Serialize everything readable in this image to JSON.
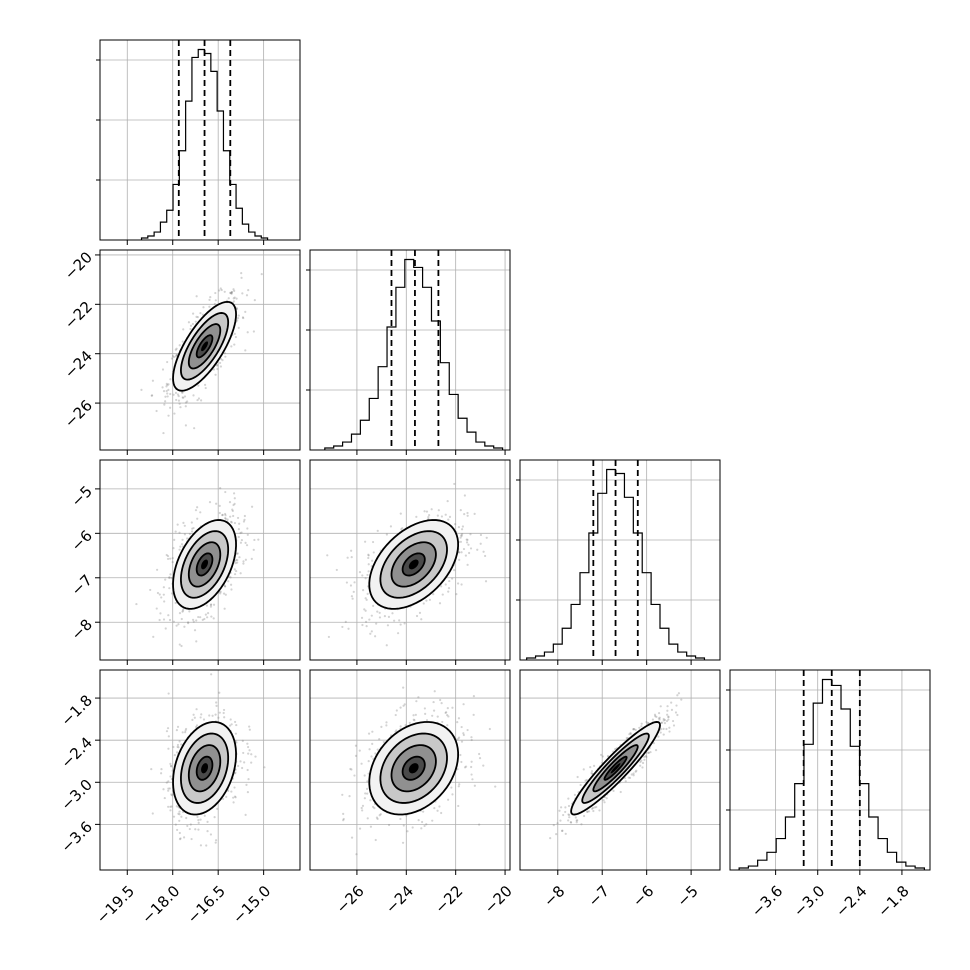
{
  "chart_data": {
    "type": "corner",
    "title": "",
    "grid": true,
    "parameters": [
      {
        "index": 0,
        "range": [
          -20.4,
          -13.8
        ],
        "mean": -16.95,
        "sd": 0.52,
        "ticks": [
          -19.5,
          -18.0,
          -16.5,
          -15.0
        ],
        "tick_labels": [
          "−19.5",
          "−18.0",
          "−16.5",
          "−15.0"
        ],
        "quantiles": [
          -17.8,
          -16.95,
          -16.1
        ]
      },
      {
        "index": 1,
        "range": [
          -27.9,
          -19.8
        ],
        "mean": -23.7,
        "sd": 0.9,
        "ticks": [
          -26,
          -24,
          -22,
          -20
        ],
        "tick_labels": [
          "−26",
          "−24",
          "−22",
          "−20"
        ],
        "quantiles": [
          -24.6,
          -23.65,
          -22.7
        ]
      },
      {
        "index": 2,
        "range": [
          -8.85,
          -4.35
        ],
        "mean": -6.7,
        "sd": 0.5,
        "ticks": [
          -8,
          -7,
          -6,
          -5
        ],
        "tick_labels": [
          "−8",
          "−7",
          "−6",
          "−5"
        ],
        "quantiles": [
          -7.2,
          -6.7,
          -6.2
        ]
      },
      {
        "index": 3,
        "range": [
          -4.25,
          -1.4
        ],
        "mean": -2.8,
        "sd": 0.33,
        "ticks": [
          -3.6,
          -3.0,
          -2.4,
          -1.8
        ],
        "tick_labels": [
          "−3.6",
          "−3.0",
          "−2.4",
          "−1.8"
        ],
        "quantiles": [
          -3.2,
          -2.8,
          -2.4
        ]
      }
    ],
    "correlations": {
      "1-0": 0.72,
      "2-0": 0.45,
      "2-1": 0.45,
      "3-0": 0.3,
      "3-1": 0.3,
      "3-2": 0.93
    },
    "histograms": [
      {
        "index": 0,
        "bins": 20,
        "counts": [
          1,
          2,
          4,
          9,
          15,
          28,
          45,
          70,
          92,
          96,
          94,
          85,
          65,
          45,
          28,
          16,
          8,
          4,
          2,
          1
        ]
      },
      {
        "index": 1,
        "bins": 20,
        "counts": [
          1,
          2,
          4,
          8,
          15,
          26,
          42,
          62,
          82,
          96,
          92,
          82,
          65,
          44,
          28,
          16,
          9,
          4,
          2,
          1
        ]
      },
      {
        "index": 2,
        "bins": 20,
        "counts": [
          1,
          2,
          4,
          8,
          16,
          28,
          44,
          64,
          84,
          96,
          94,
          82,
          64,
          44,
          28,
          16,
          8,
          4,
          2,
          1
        ]
      },
      {
        "index": 3,
        "bins": 20,
        "counts": [
          1,
          2,
          5,
          9,
          16,
          27,
          44,
          64,
          85,
          97,
          94,
          82,
          63,
          44,
          27,
          16,
          9,
          4,
          2,
          1
        ]
      }
    ],
    "contour_levels_sigma": [
      0.5,
      1.0,
      1.5,
      2.0
    ],
    "scatter_points_per_panel": 700
  }
}
